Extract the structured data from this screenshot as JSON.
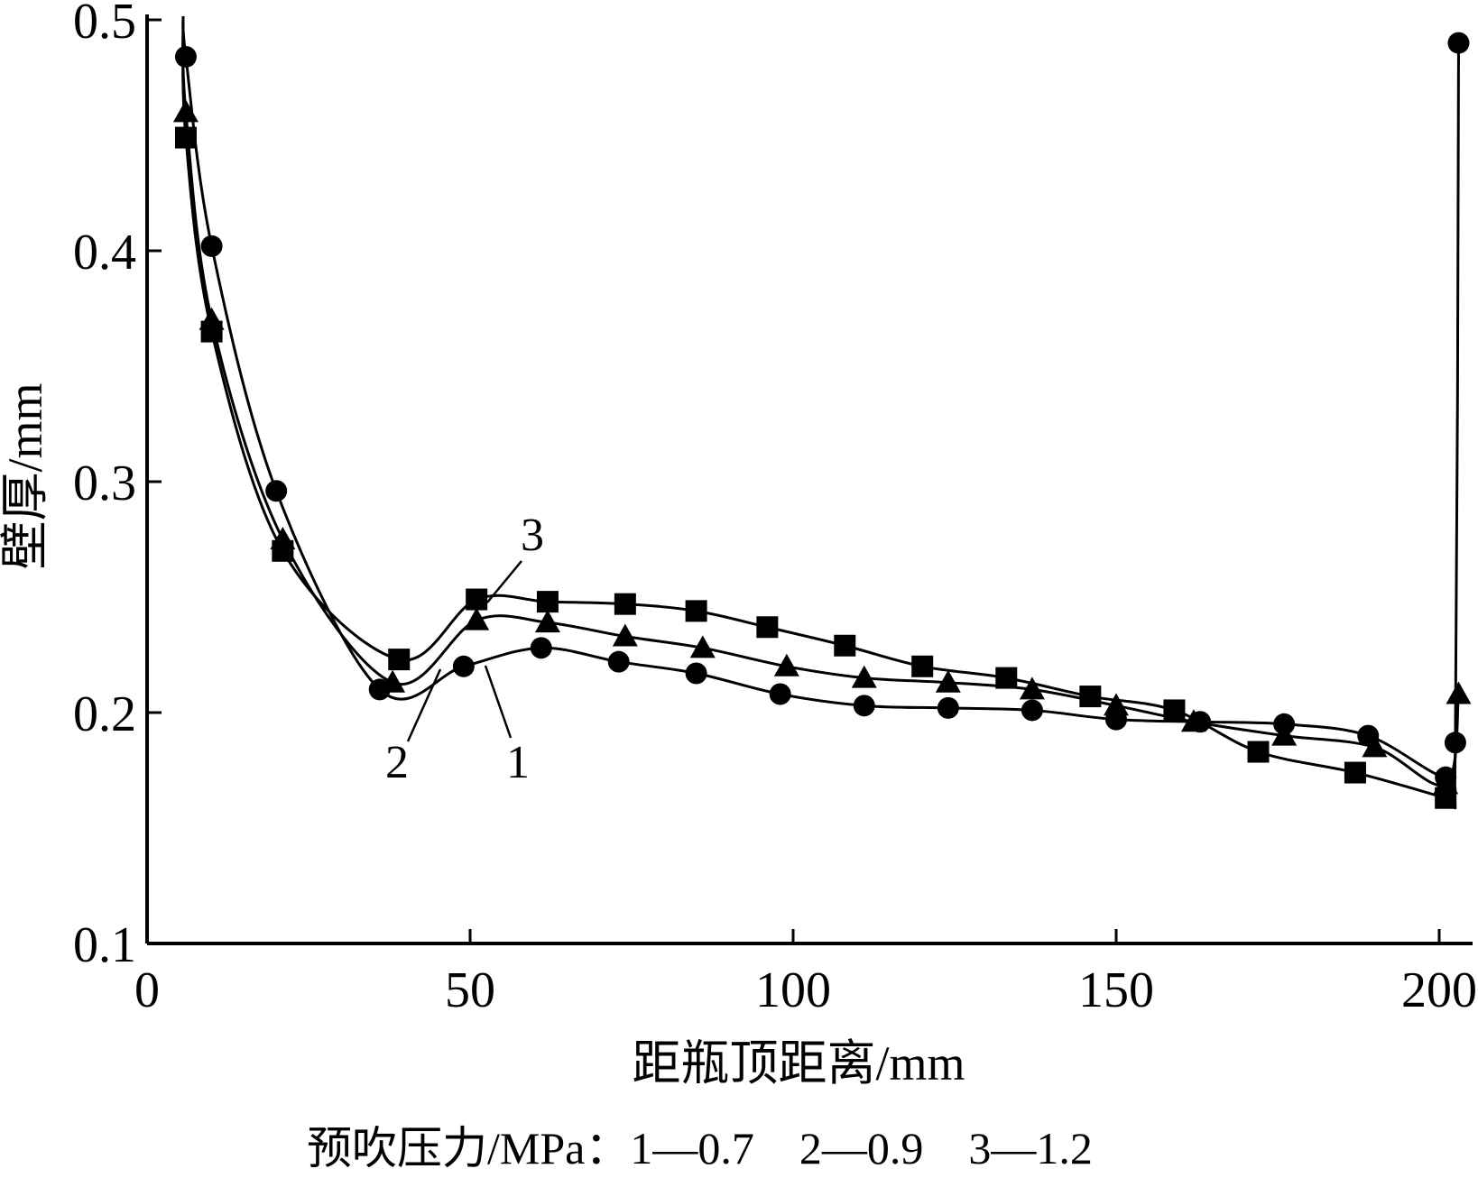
{
  "chart_data": {
    "type": "line",
    "title": "",
    "xlabel": "距瓶顶距离/mm",
    "ylabel": "壁厚/mm",
    "xlim": [
      0,
      205
    ],
    "ylim": [
      0.1,
      0.5
    ],
    "x_ticks": [
      "0",
      "50",
      "100",
      "150",
      "200"
    ],
    "y_ticks": [
      "0.1",
      "0.2",
      "0.3",
      "0.4",
      "0.5"
    ],
    "grid": false,
    "legend_caption": "预吹压力/MPa：1—0.7　2—0.9　3—1.2",
    "series": [
      {
        "name": "1",
        "marker": "circle",
        "points": [
          [
            6,
            0.484
          ],
          [
            10,
            0.402
          ],
          [
            20,
            0.296
          ],
          [
            36,
            0.21
          ],
          [
            49,
            0.22
          ],
          [
            61,
            0.228
          ],
          [
            73,
            0.222
          ],
          [
            85,
            0.217
          ],
          [
            98,
            0.208
          ],
          [
            111,
            0.203
          ],
          [
            124,
            0.202
          ],
          [
            137,
            0.201
          ],
          [
            150,
            0.197
          ],
          [
            163,
            0.196
          ],
          [
            176,
            0.195
          ],
          [
            189,
            0.19
          ],
          [
            201,
            0.172
          ],
          [
            202.5,
            0.187
          ],
          [
            203,
            0.49
          ]
        ]
      },
      {
        "name": "2",
        "marker": "triangle",
        "points": [
          [
            6,
            0.46
          ],
          [
            10,
            0.37
          ],
          [
            21,
            0.275
          ],
          [
            38,
            0.213
          ],
          [
            51,
            0.24
          ],
          [
            62,
            0.239
          ],
          [
            74,
            0.233
          ],
          [
            86,
            0.228
          ],
          [
            99,
            0.22
          ],
          [
            111,
            0.215
          ],
          [
            124,
            0.213
          ],
          [
            137,
            0.21
          ],
          [
            150,
            0.203
          ],
          [
            162,
            0.196
          ],
          [
            176,
            0.19
          ],
          [
            190,
            0.185
          ],
          [
            201,
            0.169
          ],
          [
            203,
            0.208
          ]
        ]
      },
      {
        "name": "3",
        "marker": "square",
        "points": [
          [
            6,
            0.449
          ],
          [
            10,
            0.365
          ],
          [
            21,
            0.27
          ],
          [
            39,
            0.223
          ],
          [
            51,
            0.249
          ],
          [
            62,
            0.248
          ],
          [
            74,
            0.247
          ],
          [
            85,
            0.244
          ],
          [
            96,
            0.237
          ],
          [
            108,
            0.229
          ],
          [
            120,
            0.22
          ],
          [
            133,
            0.215
          ],
          [
            146,
            0.207
          ],
          [
            159,
            0.201
          ],
          [
            172,
            0.183
          ],
          [
            187,
            0.174
          ],
          [
            201,
            0.163
          ]
        ]
      }
    ],
    "annotations": [
      {
        "text": "3",
        "at": [
          53,
          0.251
        ]
      },
      {
        "text": "2",
        "at": [
          43,
          0.225
        ]
      },
      {
        "text": "1",
        "at": [
          55,
          0.222
        ]
      }
    ]
  }
}
